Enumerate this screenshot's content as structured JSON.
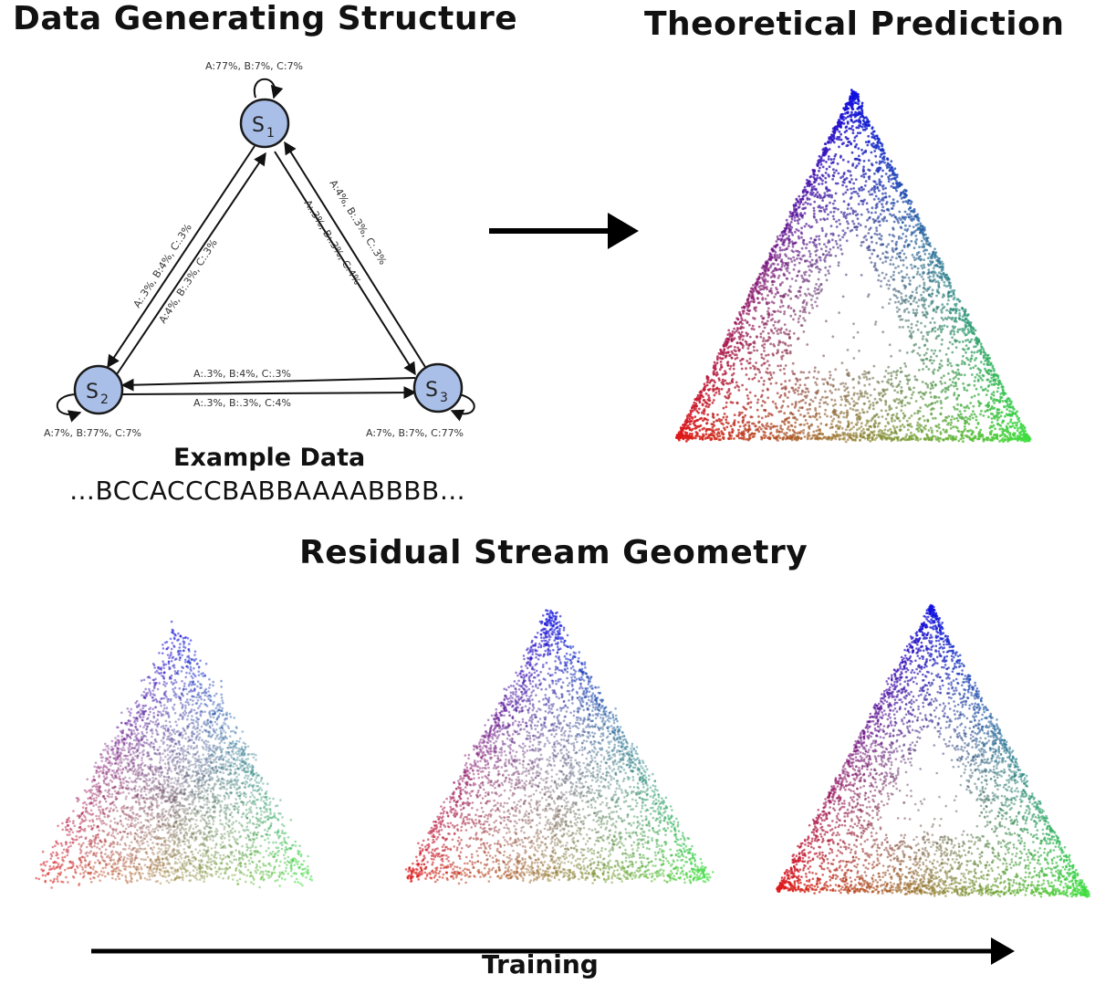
{
  "titles": {
    "data_generating_structure": "Data Generating Structure",
    "theoretical_prediction": "Theoretical Prediction",
    "residual_stream_geometry": "Residual Stream Geometry"
  },
  "example": {
    "label": "Example Data",
    "sequence": "…BCCACCCBABBAAAABBBB…"
  },
  "axis": {
    "training_label": "Training"
  },
  "hmm": {
    "nodes": [
      {
        "id": "S1",
        "letter": "S",
        "subscript": "1",
        "self_loop": "A:77%, B:7%, C:7%"
      },
      {
        "id": "S2",
        "letter": "S",
        "subscript": "2",
        "self_loop": "A:7%, B:77%, C:7%"
      },
      {
        "id": "S3",
        "letter": "S",
        "subscript": "3",
        "self_loop": "A:7%, B:7%, C:77%"
      }
    ],
    "transitions": {
      "s1_to_s2": "A:.3%, B:4%, C:.3%",
      "s2_to_s1": "A:4%, B:.3%, C:.3%",
      "s3_to_s1": "A:4%, B:.3%, C:.3%",
      "s1_to_s3": "A:.3%, B:.3%, C:4%",
      "s3_to_s2": "A:.3%, B:4%, C:.3%",
      "s2_to_s3": "A:.3%, B:.3%, C:4%"
    }
  },
  "colors": {
    "node_fill": "#a9bfe8",
    "node_stroke": "#1a1a1a",
    "state_a": "#1010e0",
    "state_b": "#e01818",
    "state_c": "#40e040"
  }
}
